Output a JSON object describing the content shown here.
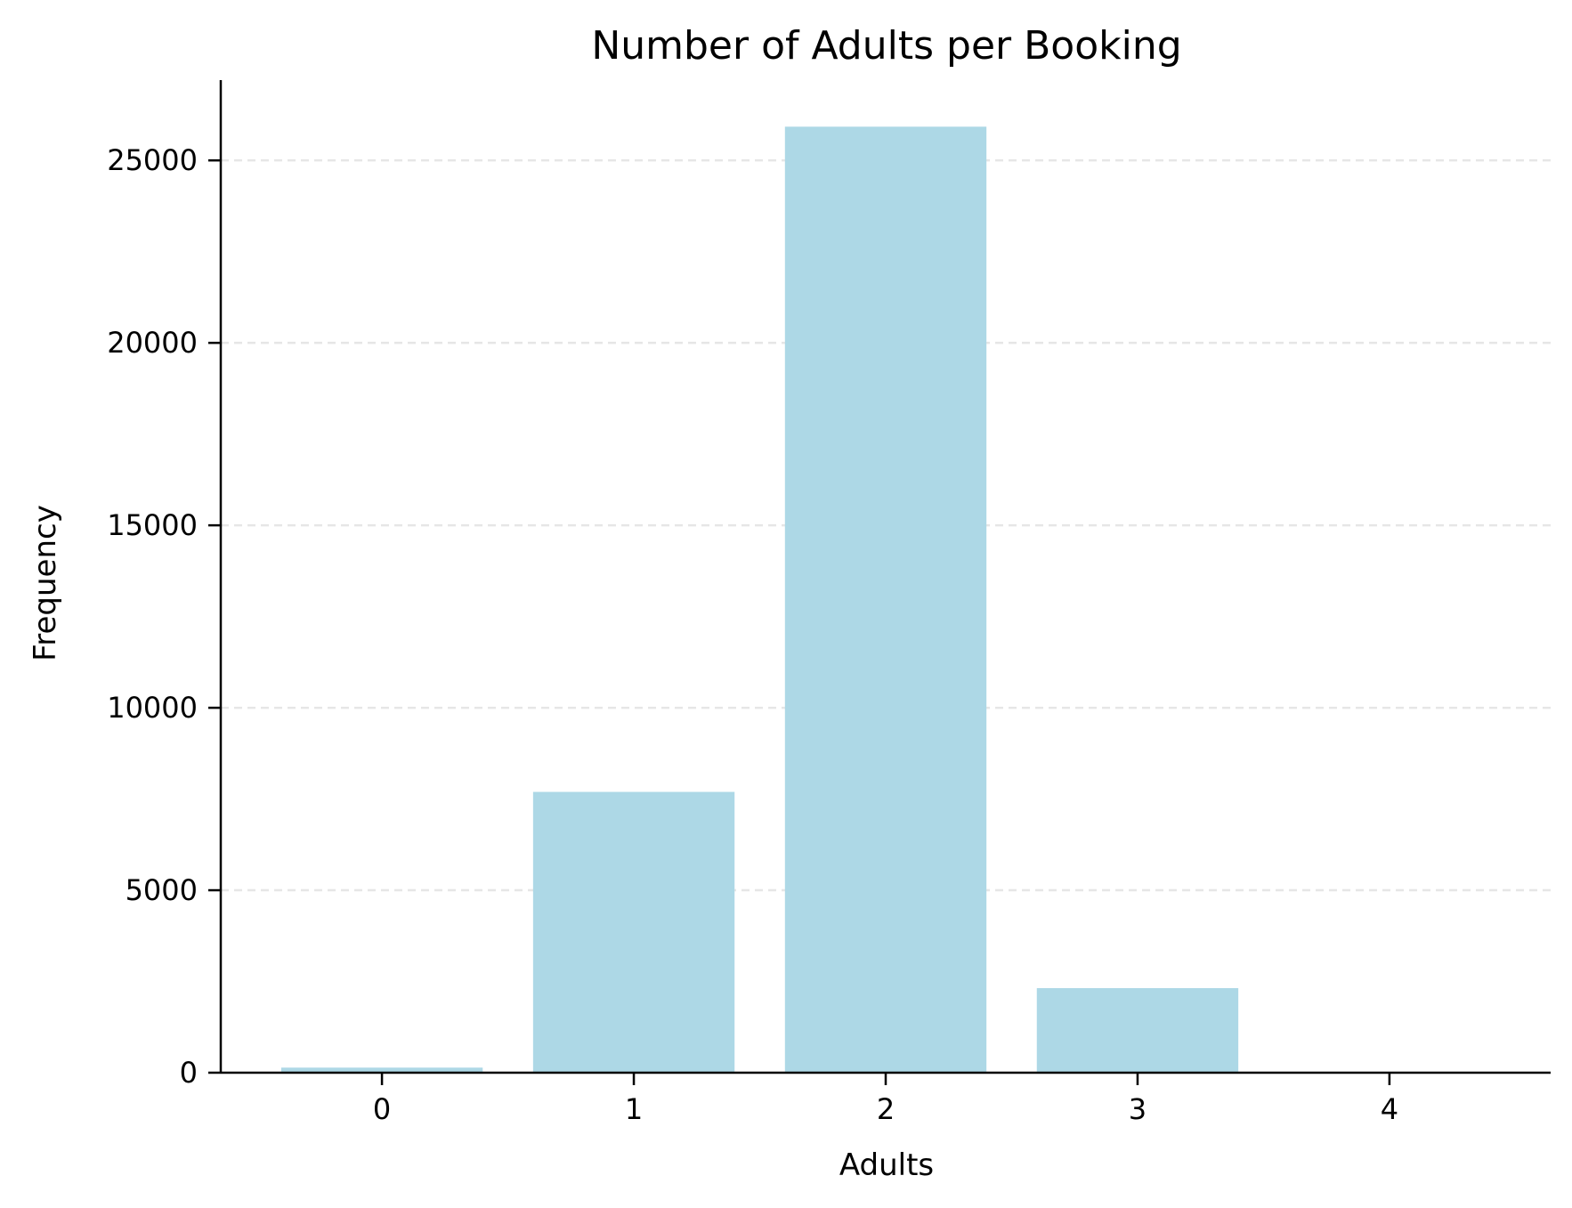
{
  "chart_data": {
    "type": "bar",
    "title": "Number of Adults per Booking",
    "xlabel": "Adults",
    "ylabel": "Frequency",
    "categories": [
      "0",
      "1",
      "2",
      "3",
      "4"
    ],
    "values": [
      139,
      7695,
      25924,
      2317,
      16
    ],
    "ylim": [
      0,
      27200
    ],
    "yticks": [
      0,
      5000,
      10000,
      15000,
      20000,
      25000
    ],
    "ytick_labels": [
      "0",
      "5000",
      "10000",
      "15000",
      "20000",
      "25000"
    ],
    "grid": "horizontal dashed",
    "legend": "none",
    "colors": {
      "bar": "#add8e6",
      "grid": "#e6e6e6",
      "axis": "#000000"
    }
  }
}
